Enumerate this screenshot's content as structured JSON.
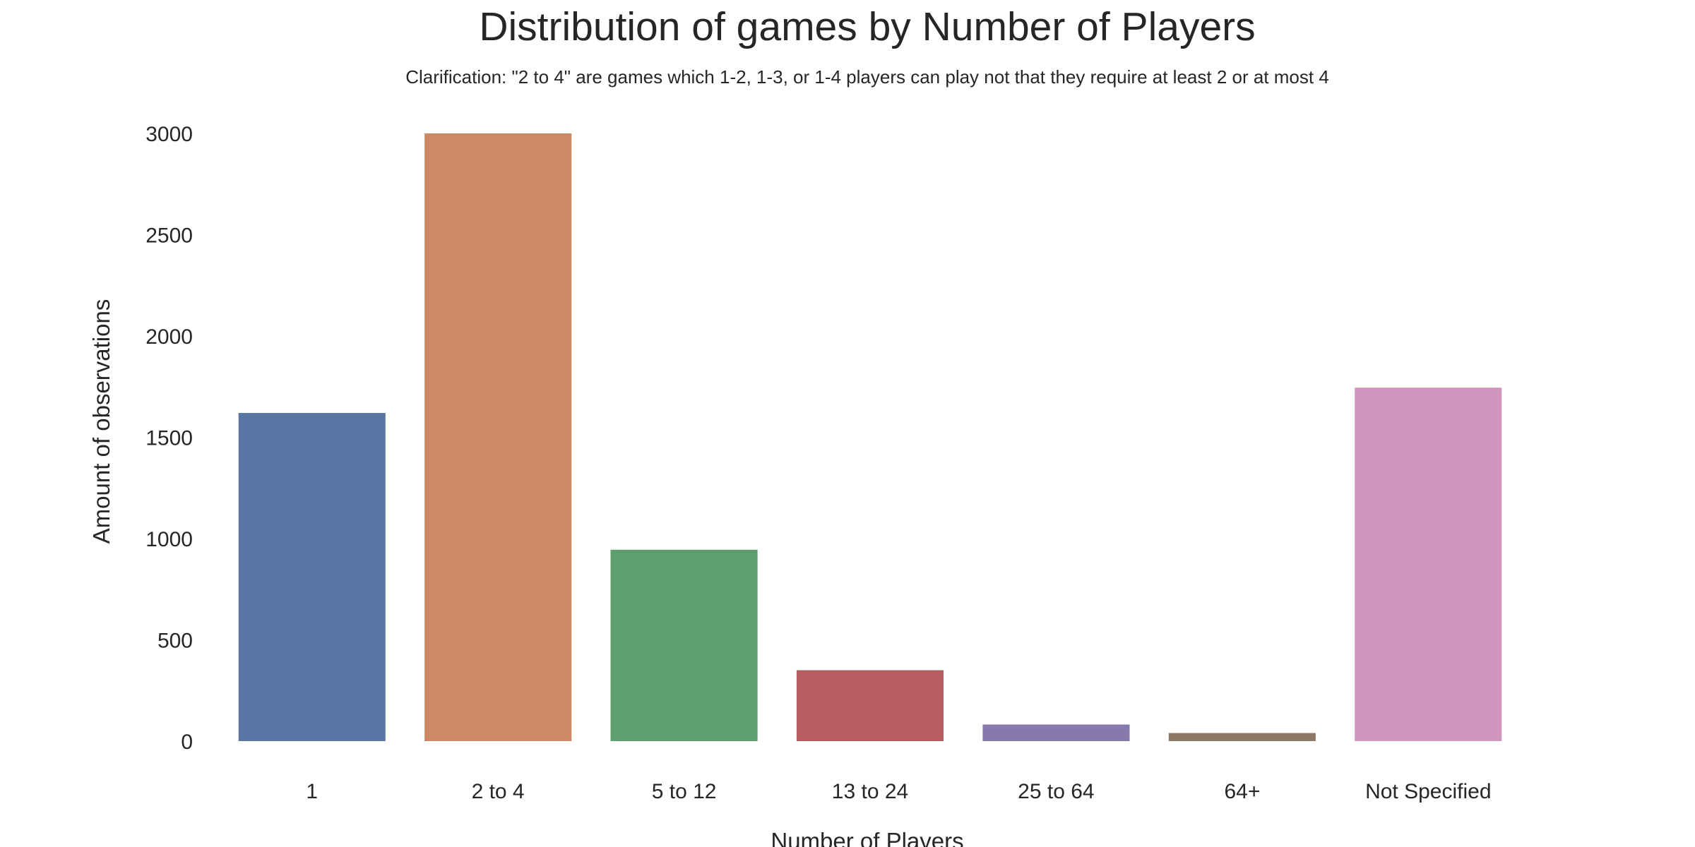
{
  "chart_data": {
    "type": "bar",
    "title": "Distribution of games by Number of Players",
    "subtitle": "Clarification: \"2 to 4\" are games which 1-2, 1-3, or 1-4 players can play not that they require at least 2 or at most 4",
    "xlabel": "Number of Players",
    "ylabel": "Amount of observations",
    "categories": [
      "1",
      "2 to 4",
      "5 to 12",
      "13 to 24",
      "25 to 64",
      "64+",
      "Not Specified"
    ],
    "values": [
      1620,
      3000,
      945,
      350,
      82,
      40,
      1745
    ],
    "colors": [
      "#5875a4",
      "#cc8963",
      "#5f9e6e",
      "#b55d60",
      "#857aab",
      "#8d7866",
      "#d095bf"
    ],
    "ylim": [
      0,
      3000
    ],
    "yticks": [
      0,
      500,
      1000,
      1500,
      2000,
      2500,
      3000
    ],
    "grid": false,
    "legend": "none"
  }
}
